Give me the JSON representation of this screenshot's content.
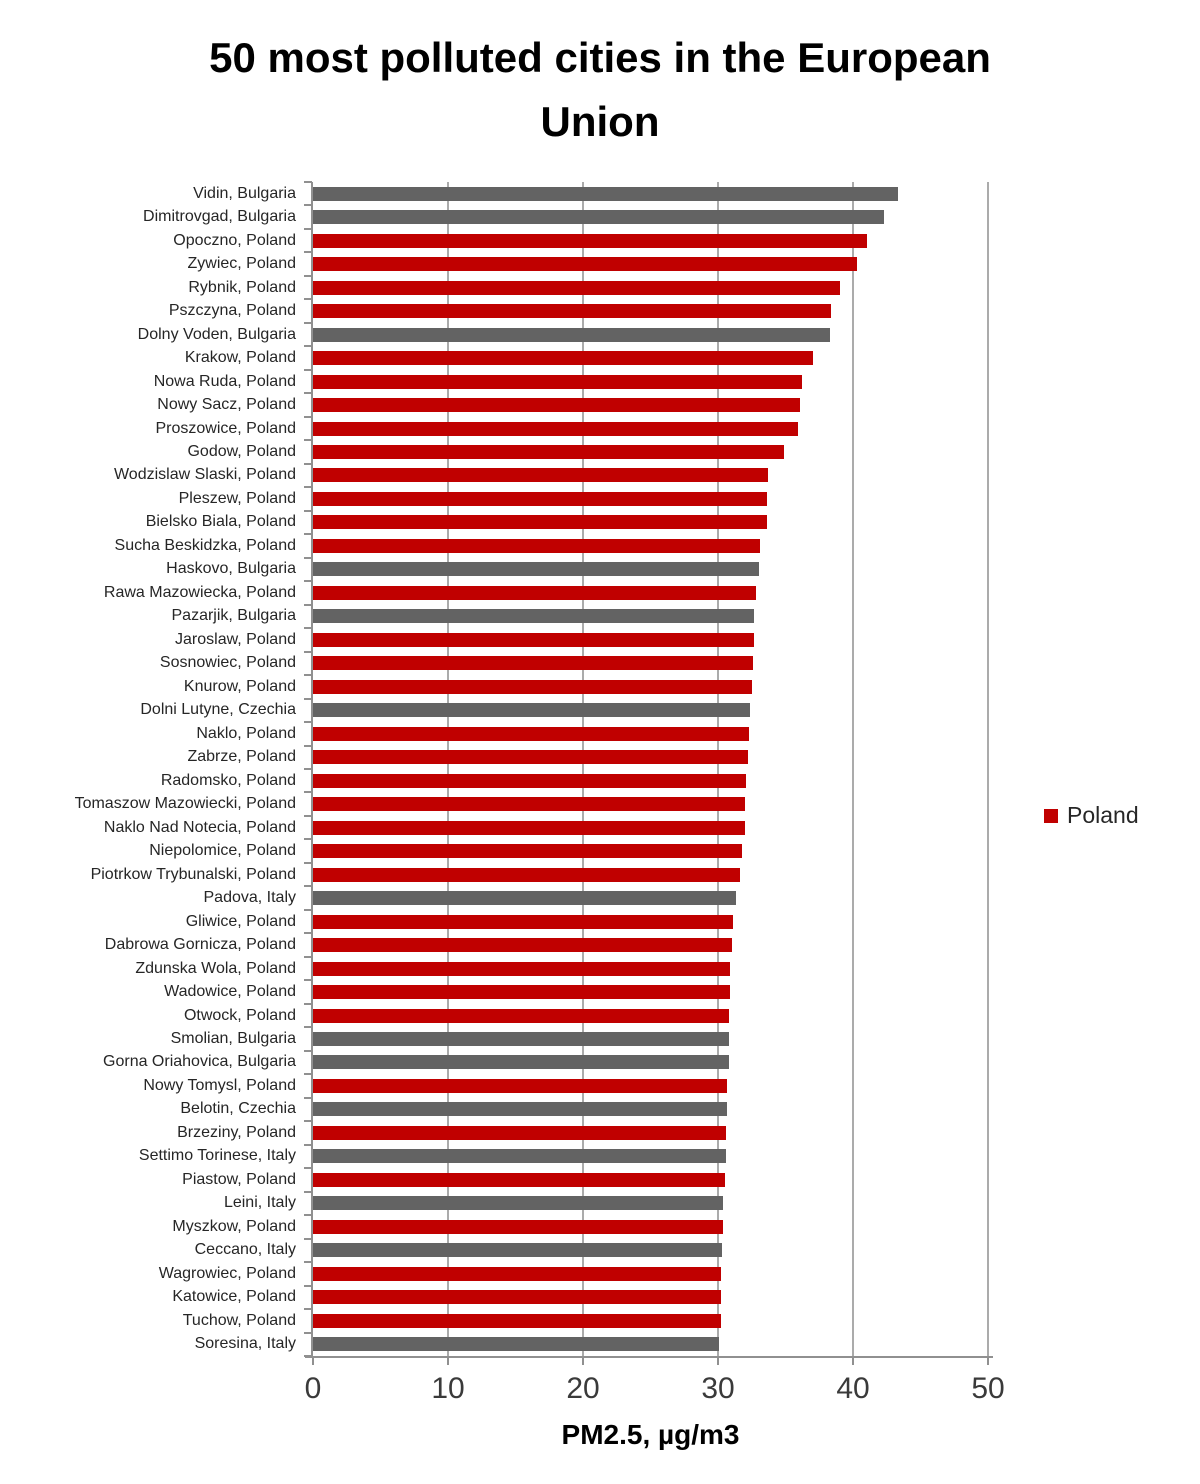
{
  "chart_data": {
    "type": "bar",
    "orientation": "horizontal",
    "title": "50 most polluted cities in the European Union",
    "title_lines": [
      "50 most polluted cities in the European",
      "Union"
    ],
    "xlabel": "PM2.5, µg/m3",
    "xlim": [
      0,
      50
    ],
    "xticks": [
      0,
      10,
      20,
      30,
      40,
      50
    ],
    "grid": true,
    "legend": {
      "position": "right",
      "entries": [
        {
          "label": "Poland",
          "color": "#c00000"
        }
      ]
    },
    "colors": {
      "poland_bar": "#c00000",
      "other_bar": "#636363",
      "gridline": "#ababab",
      "axis": "#909090"
    },
    "bars": [
      {
        "label": "Vidin, Bulgaria",
        "value": 43.3,
        "country": "Bulgaria"
      },
      {
        "label": "Dimitrovgad, Bulgaria",
        "value": 42.3,
        "country": "Bulgaria"
      },
      {
        "label": "Opoczno, Poland",
        "value": 41.0,
        "country": "Poland"
      },
      {
        "label": "Zywiec, Poland",
        "value": 40.3,
        "country": "Poland"
      },
      {
        "label": "Rybnik, Poland",
        "value": 39.0,
        "country": "Poland"
      },
      {
        "label": "Pszczyna, Poland",
        "value": 38.4,
        "country": "Poland"
      },
      {
        "label": "Dolny Voden, Bulgaria",
        "value": 38.3,
        "country": "Bulgaria"
      },
      {
        "label": "Krakow, Poland",
        "value": 37.0,
        "country": "Poland"
      },
      {
        "label": "Nowa Ruda, Poland",
        "value": 36.2,
        "country": "Poland"
      },
      {
        "label": "Nowy Sacz, Poland",
        "value": 36.1,
        "country": "Poland"
      },
      {
        "label": "Proszowice, Poland",
        "value": 35.9,
        "country": "Poland"
      },
      {
        "label": "Godow, Poland",
        "value": 34.9,
        "country": "Poland"
      },
      {
        "label": "Wodzislaw Slaski, Poland",
        "value": 33.7,
        "country": "Poland"
      },
      {
        "label": "Pleszew, Poland",
        "value": 33.6,
        "country": "Poland"
      },
      {
        "label": "Bielsko Biala, Poland",
        "value": 33.6,
        "country": "Poland"
      },
      {
        "label": "Sucha Beskidzka, Poland",
        "value": 33.1,
        "country": "Poland"
      },
      {
        "label": "Haskovo, Bulgaria",
        "value": 33.0,
        "country": "Bulgaria"
      },
      {
        "label": "Rawa Mazowiecka, Poland",
        "value": 32.8,
        "country": "Poland"
      },
      {
        "label": "Pazarjik, Bulgaria",
        "value": 32.7,
        "country": "Bulgaria"
      },
      {
        "label": "Jaroslaw, Poland",
        "value": 32.7,
        "country": "Poland"
      },
      {
        "label": "Sosnowiec, Poland",
        "value": 32.6,
        "country": "Poland"
      },
      {
        "label": "Knurow, Poland",
        "value": 32.5,
        "country": "Poland"
      },
      {
        "label": "Dolni Lutyne, Czechia",
        "value": 32.4,
        "country": "Czechia"
      },
      {
        "label": "Naklo, Poland",
        "value": 32.3,
        "country": "Poland"
      },
      {
        "label": "Zabrze, Poland",
        "value": 32.2,
        "country": "Poland"
      },
      {
        "label": "Radomsko, Poland",
        "value": 32.1,
        "country": "Poland"
      },
      {
        "label": "Tomaszow Mazowiecki, Poland",
        "value": 32.0,
        "country": "Poland"
      },
      {
        "label": "Naklo Nad Notecia, Poland",
        "value": 32.0,
        "country": "Poland"
      },
      {
        "label": "Niepolomice, Poland",
        "value": 31.8,
        "country": "Poland"
      },
      {
        "label": "Piotrkow Trybunalski, Poland",
        "value": 31.6,
        "country": "Poland"
      },
      {
        "label": "Padova, Italy",
        "value": 31.3,
        "country": "Italy"
      },
      {
        "label": "Gliwice, Poland",
        "value": 31.1,
        "country": "Poland"
      },
      {
        "label": "Dabrowa Gornicza, Poland",
        "value": 31.0,
        "country": "Poland"
      },
      {
        "label": "Zdunska Wola, Poland",
        "value": 30.9,
        "country": "Poland"
      },
      {
        "label": "Wadowice, Poland",
        "value": 30.9,
        "country": "Poland"
      },
      {
        "label": "Otwock, Poland",
        "value": 30.8,
        "country": "Poland"
      },
      {
        "label": "Smolian, Bulgaria",
        "value": 30.8,
        "country": "Bulgaria"
      },
      {
        "label": "Gorna Oriahovica, Bulgaria",
        "value": 30.8,
        "country": "Bulgaria"
      },
      {
        "label": "Nowy Tomysl, Poland",
        "value": 30.7,
        "country": "Poland"
      },
      {
        "label": "Belotin, Czechia",
        "value": 30.7,
        "country": "Czechia"
      },
      {
        "label": "Brzeziny, Poland",
        "value": 30.6,
        "country": "Poland"
      },
      {
        "label": "Settimo Torinese, Italy",
        "value": 30.6,
        "country": "Italy"
      },
      {
        "label": "Piastow, Poland",
        "value": 30.5,
        "country": "Poland"
      },
      {
        "label": "Leini, Italy",
        "value": 30.4,
        "country": "Italy"
      },
      {
        "label": "Myszkow, Poland",
        "value": 30.4,
        "country": "Poland"
      },
      {
        "label": "Ceccano, Italy",
        "value": 30.3,
        "country": "Italy"
      },
      {
        "label": "Wagrowiec, Poland",
        "value": 30.2,
        "country": "Poland"
      },
      {
        "label": "Katowice, Poland",
        "value": 30.2,
        "country": "Poland"
      },
      {
        "label": "Tuchow, Poland",
        "value": 30.2,
        "country": "Poland"
      },
      {
        "label": "Soresina, Italy",
        "value": 30.1,
        "country": "Italy"
      }
    ]
  }
}
